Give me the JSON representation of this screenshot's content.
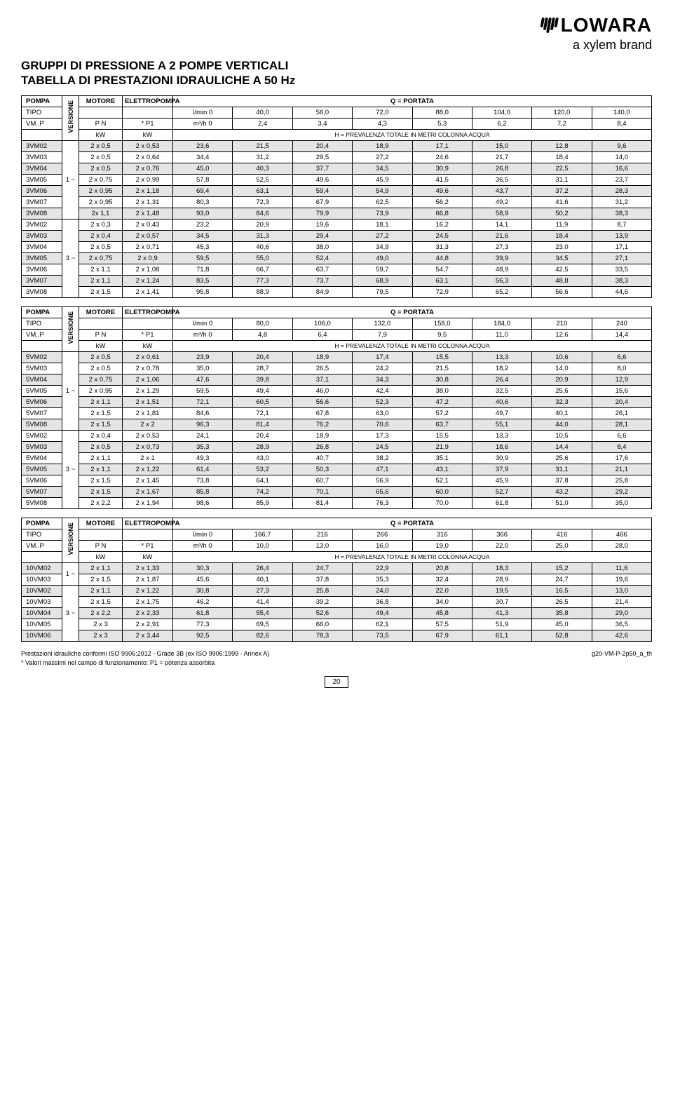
{
  "logo_text": "LOWARA",
  "brand_text": "a xylem brand",
  "title_l1": "GRUPPI DI PRESSIONE A 2 POMPE VERTICALI",
  "title_l2": "TABELLA DI PRESTAZIONI IDRAULICHE A 50 Hz",
  "labels": {
    "pompa": "POMPA",
    "tipo": "TIPO",
    "vmp": "VM..P",
    "versione": "VERSIONE",
    "motore": "MOTORE",
    "pn": "P N",
    "kw": "kW",
    "elettropompa": "ELETTROPOMPA",
    "p1": "* P1",
    "portata": "Q = PORTATA",
    "lmin": "l/min 0",
    "m3h": "m³/h 0",
    "preval": "H = PREVALENZA TOTALE IN METRI COLONNA ACQUA"
  },
  "table1": {
    "lmin": [
      "40,0",
      "56,0",
      "72,0",
      "88,0",
      "104,0",
      "120,0",
      "140,0"
    ],
    "m3h": [
      "2,4",
      "3,4",
      "4,3",
      "5,3",
      "6,2",
      "7,2",
      "8,4"
    ],
    "groups": [
      {
        "ver": "1 ~",
        "rows": [
          {
            "m": "3VM02",
            "pn": "2 x 0,5",
            "p1": "2 x 0,53",
            "v": [
              "23,6",
              "21,5",
              "20,4",
              "18,9",
              "17,1",
              "15,0",
              "12,8",
              "9,6"
            ],
            "s": 1
          },
          {
            "m": "3VM03",
            "pn": "2 x 0,5",
            "p1": "2 x 0,64",
            "v": [
              "34,4",
              "31,2",
              "29,5",
              "27,2",
              "24,6",
              "21,7",
              "18,4",
              "14,0"
            ],
            "s": 0
          },
          {
            "m": "3VM04",
            "pn": "2 x 0,5",
            "p1": "2 x 0,76",
            "v": [
              "45,0",
              "40,3",
              "37,7",
              "34,5",
              "30,9",
              "26,8",
              "22,5",
              "16,6"
            ],
            "s": 1
          },
          {
            "m": "3VM05",
            "pn": "2 x 0,75",
            "p1": "2 x 0,99",
            "v": [
              "57,8",
              "52,5",
              "49,6",
              "45,9",
              "41,5",
              "36,5",
              "31,1",
              "23,7"
            ],
            "s": 0
          },
          {
            "m": "3VM06",
            "pn": "2 x 0,95",
            "p1": "2 x 1,18",
            "v": [
              "69,4",
              "63,1",
              "59,4",
              "54,9",
              "49,6",
              "43,7",
              "37,2",
              "28,3"
            ],
            "s": 1
          },
          {
            "m": "3VM07",
            "pn": "2 x 0,95",
            "p1": "2 x 1,31",
            "v": [
              "80,3",
              "72,3",
              "67,9",
              "62,5",
              "56,2",
              "49,2",
              "41,6",
              "31,2"
            ],
            "s": 0
          },
          {
            "m": "3VM08",
            "pn": "2x 1,1",
            "p1": "2 x 1,48",
            "v": [
              "93,0",
              "84,6",
              "79,9",
              "73,9",
              "66,8",
              "58,9",
              "50,2",
              "38,3"
            ],
            "s": 1
          }
        ]
      },
      {
        "ver": "3 ~",
        "rows": [
          {
            "m": "3VM02",
            "pn": "2 x 0,3",
            "p1": "2 x 0,43",
            "v": [
              "23,2",
              "20,9",
              "19,6",
              "18,1",
              "16,2",
              "14,1",
              "11,9",
              "8,7"
            ],
            "s": 0
          },
          {
            "m": "3VM03",
            "pn": "2 x 0,4",
            "p1": "2 x 0,57",
            "v": [
              "34,5",
              "31,3",
              "29,4",
              "27,2",
              "24,5",
              "21,6",
              "18,4",
              "13,9"
            ],
            "s": 1
          },
          {
            "m": "3VM04",
            "pn": "2 x 0,5",
            "p1": "2 x 0,71",
            "v": [
              "45,3",
              "40,6",
              "38,0",
              "34,9",
              "31,3",
              "27,3",
              "23,0",
              "17,1"
            ],
            "s": 0
          },
          {
            "m": "3VM05",
            "pn": "2 x 0,75",
            "p1": "2 x 0,9",
            "v": [
              "59,5",
              "55,0",
              "52,4",
              "49,0",
              "44,8",
              "39,9",
              "34,5",
              "27,1"
            ],
            "s": 1
          },
          {
            "m": "3VM06",
            "pn": "2 x 1,1",
            "p1": "2 x 1,08",
            "v": [
              "71,8",
              "66,7",
              "63,7",
              "59,7",
              "54,7",
              "48,9",
              "42,5",
              "33,5"
            ],
            "s": 0
          },
          {
            "m": "3VM07",
            "pn": "2 x 1,1",
            "p1": "2 x 1,24",
            "v": [
              "83,5",
              "77,3",
              "73,7",
              "68,9",
              "63,1",
              "56,3",
              "48,8",
              "38,3"
            ],
            "s": 1
          },
          {
            "m": "3VM08",
            "pn": "2 x 1,5",
            "p1": "2 x 1,41",
            "v": [
              "95,8",
              "88,9",
              "84,9",
              "79,5",
              "72,9",
              "65,2",
              "56,6",
              "44,6"
            ],
            "s": 0
          }
        ]
      }
    ]
  },
  "table2": {
    "lmin": [
      "80,0",
      "106,0",
      "132,0",
      "158,0",
      "184,0",
      "210",
      "240"
    ],
    "m3h": [
      "4,8",
      "6,4",
      "7,9",
      "9,5",
      "11,0",
      "12,6",
      "14,4"
    ],
    "groups": [
      {
        "ver": "1 ~",
        "rows": [
          {
            "m": "5VM02",
            "pn": "2 x 0,5",
            "p1": "2 x 0,61",
            "v": [
              "23,9",
              "20,4",
              "18,9",
              "17,4",
              "15,5",
              "13,3",
              "10,6",
              "6,6"
            ],
            "s": 1
          },
          {
            "m": "5VM03",
            "pn": "2 x 0,5",
            "p1": "2 x 0,78",
            "v": [
              "35,0",
              "28,7",
              "26,5",
              "24,2",
              "21,5",
              "18,2",
              "14,0",
              "8,0"
            ],
            "s": 0
          },
          {
            "m": "5VM04",
            "pn": "2 x 0,75",
            "p1": "2 x 1,06",
            "v": [
              "47,6",
              "39,8",
              "37,1",
              "34,3",
              "30,8",
              "26,4",
              "20,9",
              "12,9"
            ],
            "s": 1
          },
          {
            "m": "5VM05",
            "pn": "2 x 0,95",
            "p1": "2 x 1,29",
            "v": [
              "59,5",
              "49,4",
              "46,0",
              "42,4",
              "38,0",
              "32,5",
              "25,6",
              "15,6"
            ],
            "s": 0
          },
          {
            "m": "5VM06",
            "pn": "2 x 1,1",
            "p1": "2 x 1,51",
            "v": [
              "72,1",
              "60,5",
              "56,6",
              "52,3",
              "47,2",
              "40,6",
              "32,3",
              "20,4"
            ],
            "s": 1
          },
          {
            "m": "5VM07",
            "pn": "2 x 1,5",
            "p1": "2 x 1,81",
            "v": [
              "84,6",
              "72,1",
              "67,8",
              "63,0",
              "57,2",
              "49,7",
              "40,1",
              "26,1"
            ],
            "s": 0
          },
          {
            "m": "5VM08",
            "pn": "2 x 1,5",
            "p1": "2 x 2",
            "v": [
              "96,3",
              "81,4",
              "76,2",
              "70,6",
              "63,7",
              "55,1",
              "44,0",
              "28,1"
            ],
            "s": 1
          }
        ]
      },
      {
        "ver": "3 ~",
        "rows": [
          {
            "m": "5VM02",
            "pn": "2 x 0,4",
            "p1": "2 x 0,53",
            "v": [
              "24,1",
              "20,4",
              "18,9",
              "17,3",
              "15,5",
              "13,3",
              "10,5",
              "6,6"
            ],
            "s": 0
          },
          {
            "m": "5VM03",
            "pn": "2 x 0,5",
            "p1": "2 x 0,73",
            "v": [
              "35,3",
              "28,9",
              "26,8",
              "24,5",
              "21,9",
              "18,6",
              "14,4",
              "8,4"
            ],
            "s": 1
          },
          {
            "m": "5VM04",
            "pn": "2 x 1,1",
            "p1": "2 x 1",
            "v": [
              "49,3",
              "43,0",
              "40,7",
              "38,2",
              "35,1",
              "30,9",
              "25,6",
              "17,6"
            ],
            "s": 0
          },
          {
            "m": "5VM05",
            "pn": "2 x 1,1",
            "p1": "2 x 1,22",
            "v": [
              "61,4",
              "53,2",
              "50,3",
              "47,1",
              "43,1",
              "37,9",
              "31,1",
              "21,1"
            ],
            "s": 1
          },
          {
            "m": "5VM06",
            "pn": "2 x 1,5",
            "p1": "2 x 1,45",
            "v": [
              "73,8",
              "64,1",
              "60,7",
              "56,9",
              "52,1",
              "45,9",
              "37,8",
              "25,8"
            ],
            "s": 0
          },
          {
            "m": "5VM07",
            "pn": "2 x 1,5",
            "p1": "2 x 1,67",
            "v": [
              "85,8",
              "74,2",
              "70,1",
              "65,6",
              "60,0",
              "52,7",
              "43,2",
              "29,2"
            ],
            "s": 1
          },
          {
            "m": "5VM08",
            "pn": "2 x 2,2",
            "p1": "2 x 1,94",
            "v": [
              "98,6",
              "85,9",
              "81,4",
              "76,3",
              "70,0",
              "61,8",
              "51,0",
              "35,0"
            ],
            "s": 0
          }
        ]
      }
    ]
  },
  "table3": {
    "lmin": [
      "166,7",
      "216",
      "266",
      "316",
      "366",
      "416",
      "466"
    ],
    "m3h": [
      "10,0",
      "13,0",
      "16,0",
      "19,0",
      "22,0",
      "25,0",
      "28,0"
    ],
    "groups": [
      {
        "ver": "1 ~",
        "rows": [
          {
            "m": "10VM02",
            "pn": "2 x 1,1",
            "p1": "2 x 1,33",
            "v": [
              "30,3",
              "26,4",
              "24,7",
              "22,9",
              "20,8",
              "18,3",
              "15,2",
              "11,6"
            ],
            "s": 1
          },
          {
            "m": "10VM03",
            "pn": "2 x 1,5",
            "p1": "2 x 1,87",
            "v": [
              "45,6",
              "40,1",
              "37,8",
              "35,3",
              "32,4",
              "28,9",
              "24,7",
              "19,6"
            ],
            "s": 0
          }
        ]
      },
      {
        "ver": "3 ~",
        "rows": [
          {
            "m": "10VM02",
            "pn": "2 x 1,1",
            "p1": "2 x 1,22",
            "v": [
              "30,8",
              "27,3",
              "25,8",
              "24,0",
              "22,0",
              "19,5",
              "16,5",
              "13,0"
            ],
            "s": 1
          },
          {
            "m": "10VM03",
            "pn": "2 x 1,5",
            "p1": "2 x 1,75",
            "v": [
              "46,2",
              "41,4",
              "39,2",
              "36,8",
              "34,0",
              "30,7",
              "26,5",
              "21,4"
            ],
            "s": 0
          },
          {
            "m": "10VM04",
            "pn": "2 x 2,2",
            "p1": "2 x 2,33",
            "v": [
              "61,8",
              "55,4",
              "52,6",
              "49,4",
              "45,8",
              "41,3",
              "35,8",
              "29,0"
            ],
            "s": 1
          },
          {
            "m": "10VM05",
            "pn": "2 x 3",
            "p1": "2 x 2,91",
            "v": [
              "77,3",
              "69,5",
              "66,0",
              "62,1",
              "57,5",
              "51,9",
              "45,0",
              "36,5"
            ],
            "s": 0
          },
          {
            "m": "10VM06",
            "pn": "2 x 3",
            "p1": "2 x 3,44",
            "v": [
              "92,5",
              "82,6",
              "78,3",
              "73,5",
              "67,9",
              "61,1",
              "52,8",
              "42,6"
            ],
            "s": 1
          }
        ]
      }
    ]
  },
  "note1": "Prestazioni idrauliche conformi ISO 9906:2012 - Grade 3B (ex ISO 9906:1999 - Annex A)",
  "note_code": "g20-VM-P-2p50_a_th",
  "note2": "* Valori massimi nel campo di funzionamento: P1 = potenza assorbita",
  "page": "20"
}
